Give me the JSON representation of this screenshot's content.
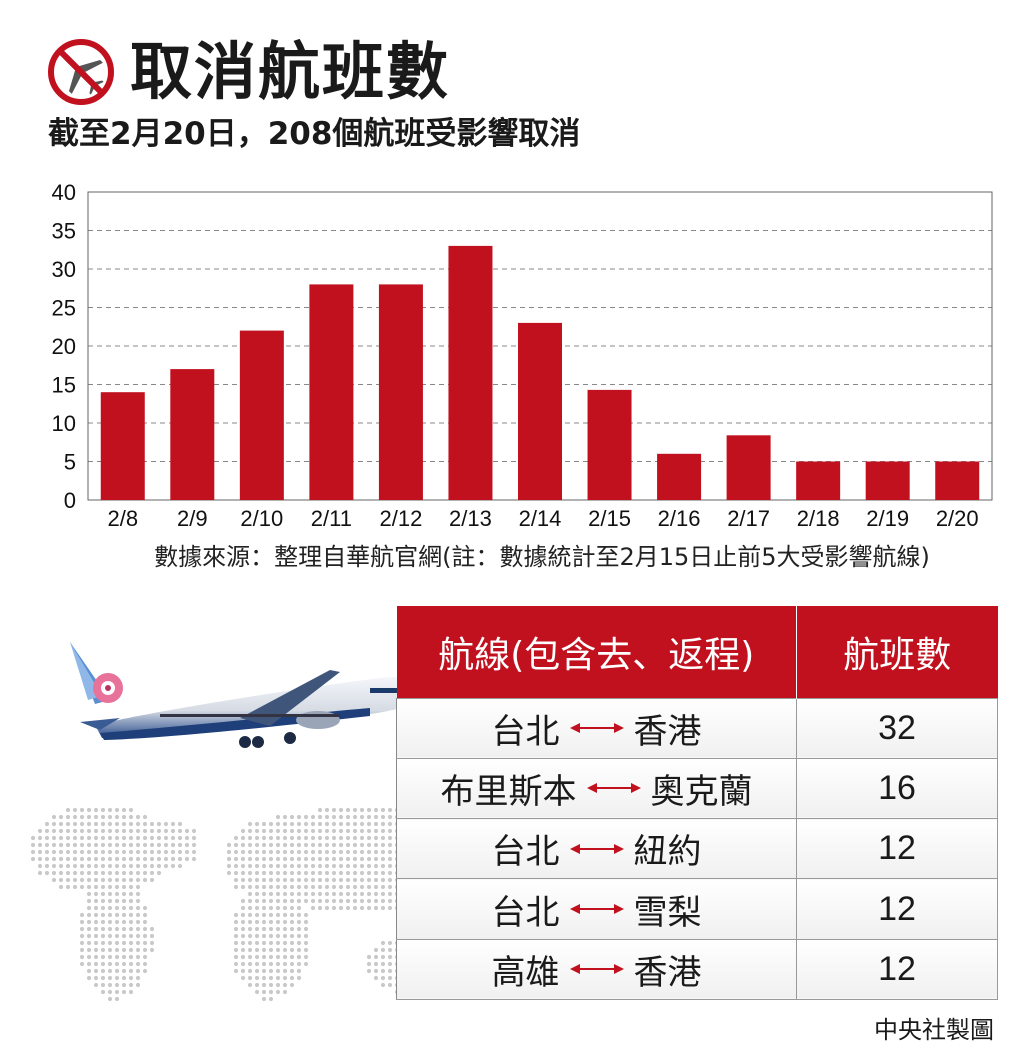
{
  "header": {
    "icon": "no-airplane-icon",
    "title": "取消航班數",
    "subtitle": "截至2月20日，208個航班受影響取消"
  },
  "colors": {
    "accent": "#c1111f"
  },
  "chart_data": {
    "type": "bar",
    "categories": [
      "2/8",
      "2/9",
      "2/10",
      "2/11",
      "2/12",
      "2/13",
      "2/14",
      "2/15",
      "2/16",
      "2/17",
      "2/18",
      "2/19",
      "2/20"
    ],
    "values": [
      14,
      17,
      22,
      28,
      28,
      33,
      23,
      14.3,
      6,
      8.4,
      5,
      5,
      5
    ],
    "ylim": [
      0,
      40
    ],
    "yticks": [
      "0",
      "5",
      "10",
      "15",
      "20",
      "25",
      "30",
      "35",
      "40"
    ],
    "grid": true,
    "bar_color": "#c1111f"
  },
  "source": "數據來源：整理自華航官網(註：數據統計至2月15日止前5大受影響航線)",
  "table": {
    "headers": [
      "航線(包含去、返程)",
      "航班數"
    ],
    "rows": [
      {
        "from": "台北",
        "to": "香港",
        "count": "32"
      },
      {
        "from": "布里斯本",
        "to": "奧克蘭",
        "count": "16"
      },
      {
        "from": "台北",
        "to": "紐約",
        "count": "12"
      },
      {
        "from": "台北",
        "to": "雪梨",
        "count": "12"
      },
      {
        "from": "高雄",
        "to": "香港",
        "count": "12"
      }
    ]
  },
  "credit": "中央社製圖"
}
